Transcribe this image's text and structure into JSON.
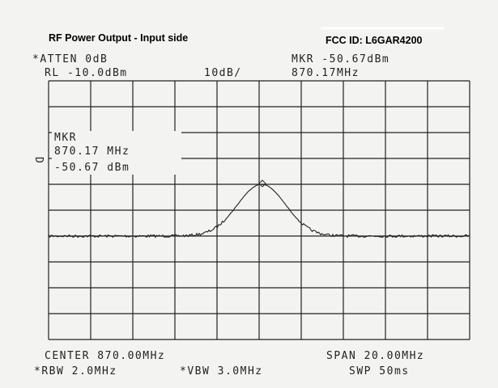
{
  "header": {
    "title": "RF Power Output - Input side",
    "fcc_id": "FCC ID: L6GAR4200"
  },
  "top": {
    "atten": "*ATTEN 0dB",
    "marker_level": "MKR -50.67dBm",
    "ref_level": "RL -10.0dBm",
    "scale": "10dB/",
    "marker_freq": "870.17MHz"
  },
  "marker_box": {
    "label": "MKR",
    "freq": "870.17 MHz",
    "level": "-50.67 dBm"
  },
  "side": {
    "detector": "D"
  },
  "bottom": {
    "center": "CENTER 870.00MHz",
    "span": "SPAN 20.00MHz",
    "rbw": "*RBW 2.0MHz",
    "vbw": "*VBW 3.0MHz",
    "sweep": "SWP 50ms"
  }
}
